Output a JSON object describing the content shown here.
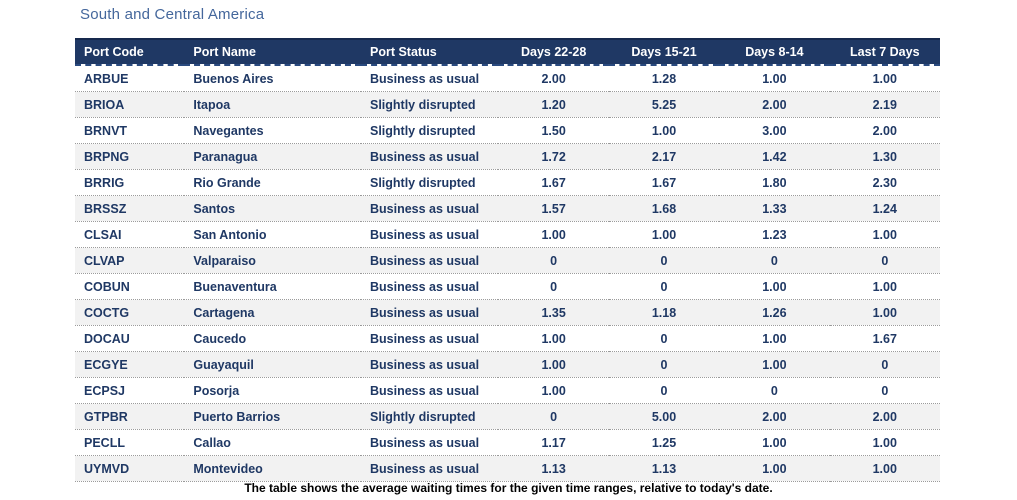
{
  "title": "South and Central America",
  "caption": "The table shows the average waiting times for the given time ranges, relative to today's date.",
  "colors": {
    "header_bg": "#1F3864",
    "header_text": "#FFFFFF",
    "row_text": "#1F3864",
    "title_text": "#44679C",
    "row_alt_bg": "#F2F2F2",
    "row_border": "#9B9B9B",
    "caption_text": "#000000"
  },
  "table": {
    "columns": [
      {
        "label": "Port Code",
        "align": "left"
      },
      {
        "label": "Port Name",
        "align": "left"
      },
      {
        "label": "Port Status",
        "align": "left"
      },
      {
        "label": "Days 22-28",
        "align": "center"
      },
      {
        "label": "Days 15-21",
        "align": "center"
      },
      {
        "label": "Days 8-14",
        "align": "center"
      },
      {
        "label": "Last 7 Days",
        "align": "center"
      }
    ],
    "rows": [
      {
        "port_code": "ARBUE",
        "port_name": "Buenos Aires",
        "port_status": "Business as usual",
        "days_22_28": "2.00",
        "days_15_21": "1.28",
        "days_8_14": "1.00",
        "last_7_days": "1.00"
      },
      {
        "port_code": "BRIOA",
        "port_name": "Itapoa",
        "port_status": "Slightly disrupted",
        "days_22_28": "1.20",
        "days_15_21": "5.25",
        "days_8_14": "2.00",
        "last_7_days": "2.19"
      },
      {
        "port_code": "BRNVT",
        "port_name": "Navegantes",
        "port_status": "Slightly disrupted",
        "days_22_28": "1.50",
        "days_15_21": "1.00",
        "days_8_14": "3.00",
        "last_7_days": "2.00"
      },
      {
        "port_code": "BRPNG",
        "port_name": "Paranagua",
        "port_status": "Business as usual",
        "days_22_28": "1.72",
        "days_15_21": "2.17",
        "days_8_14": "1.42",
        "last_7_days": "1.30"
      },
      {
        "port_code": "BRRIG",
        "port_name": "Rio Grande",
        "port_status": "Slightly disrupted",
        "days_22_28": "1.67",
        "days_15_21": "1.67",
        "days_8_14": "1.80",
        "last_7_days": "2.30"
      },
      {
        "port_code": "BRSSZ",
        "port_name": "Santos",
        "port_status": "Business as usual",
        "days_22_28": "1.57",
        "days_15_21": "1.68",
        "days_8_14": "1.33",
        "last_7_days": "1.24"
      },
      {
        "port_code": "CLSAI",
        "port_name": "San Antonio",
        "port_status": "Business as usual",
        "days_22_28": "1.00",
        "days_15_21": "1.00",
        "days_8_14": "1.23",
        "last_7_days": "1.00"
      },
      {
        "port_code": "CLVAP",
        "port_name": "Valparaiso",
        "port_status": "Business as usual",
        "days_22_28": "0",
        "days_15_21": "0",
        "days_8_14": "0",
        "last_7_days": "0"
      },
      {
        "port_code": "COBUN",
        "port_name": "Buenaventura",
        "port_status": "Business as usual",
        "days_22_28": "0",
        "days_15_21": "0",
        "days_8_14": "1.00",
        "last_7_days": "1.00"
      },
      {
        "port_code": "COCTG",
        "port_name": "Cartagena",
        "port_status": "Business as usual",
        "days_22_28": "1.35",
        "days_15_21": "1.18",
        "days_8_14": "1.26",
        "last_7_days": "1.00"
      },
      {
        "port_code": "DOCAU",
        "port_name": "Caucedo",
        "port_status": "Business as usual",
        "days_22_28": "1.00",
        "days_15_21": "0",
        "days_8_14": "1.00",
        "last_7_days": "1.67"
      },
      {
        "port_code": "ECGYE",
        "port_name": "Guayaquil",
        "port_status": "Business as usual",
        "days_22_28": "1.00",
        "days_15_21": "0",
        "days_8_14": "1.00",
        "last_7_days": "0"
      },
      {
        "port_code": "ECPSJ",
        "port_name": "Posorja",
        "port_status": "Business as usual",
        "days_22_28": "1.00",
        "days_15_21": "0",
        "days_8_14": "0",
        "last_7_days": "0"
      },
      {
        "port_code": "GTPBR",
        "port_name": "Puerto Barrios",
        "port_status": "Slightly disrupted",
        "days_22_28": "0",
        "days_15_21": "5.00",
        "days_8_14": "2.00",
        "last_7_days": "2.00"
      },
      {
        "port_code": "PECLL",
        "port_name": "Callao",
        "port_status": "Business as usual",
        "days_22_28": "1.17",
        "days_15_21": "1.25",
        "days_8_14": "1.00",
        "last_7_days": "1.00"
      },
      {
        "port_code": "UYMVD",
        "port_name": "Montevideo",
        "port_status": "Business as usual",
        "days_22_28": "1.13",
        "days_15_21": "1.13",
        "days_8_14": "1.00",
        "last_7_days": "1.00"
      }
    ]
  }
}
